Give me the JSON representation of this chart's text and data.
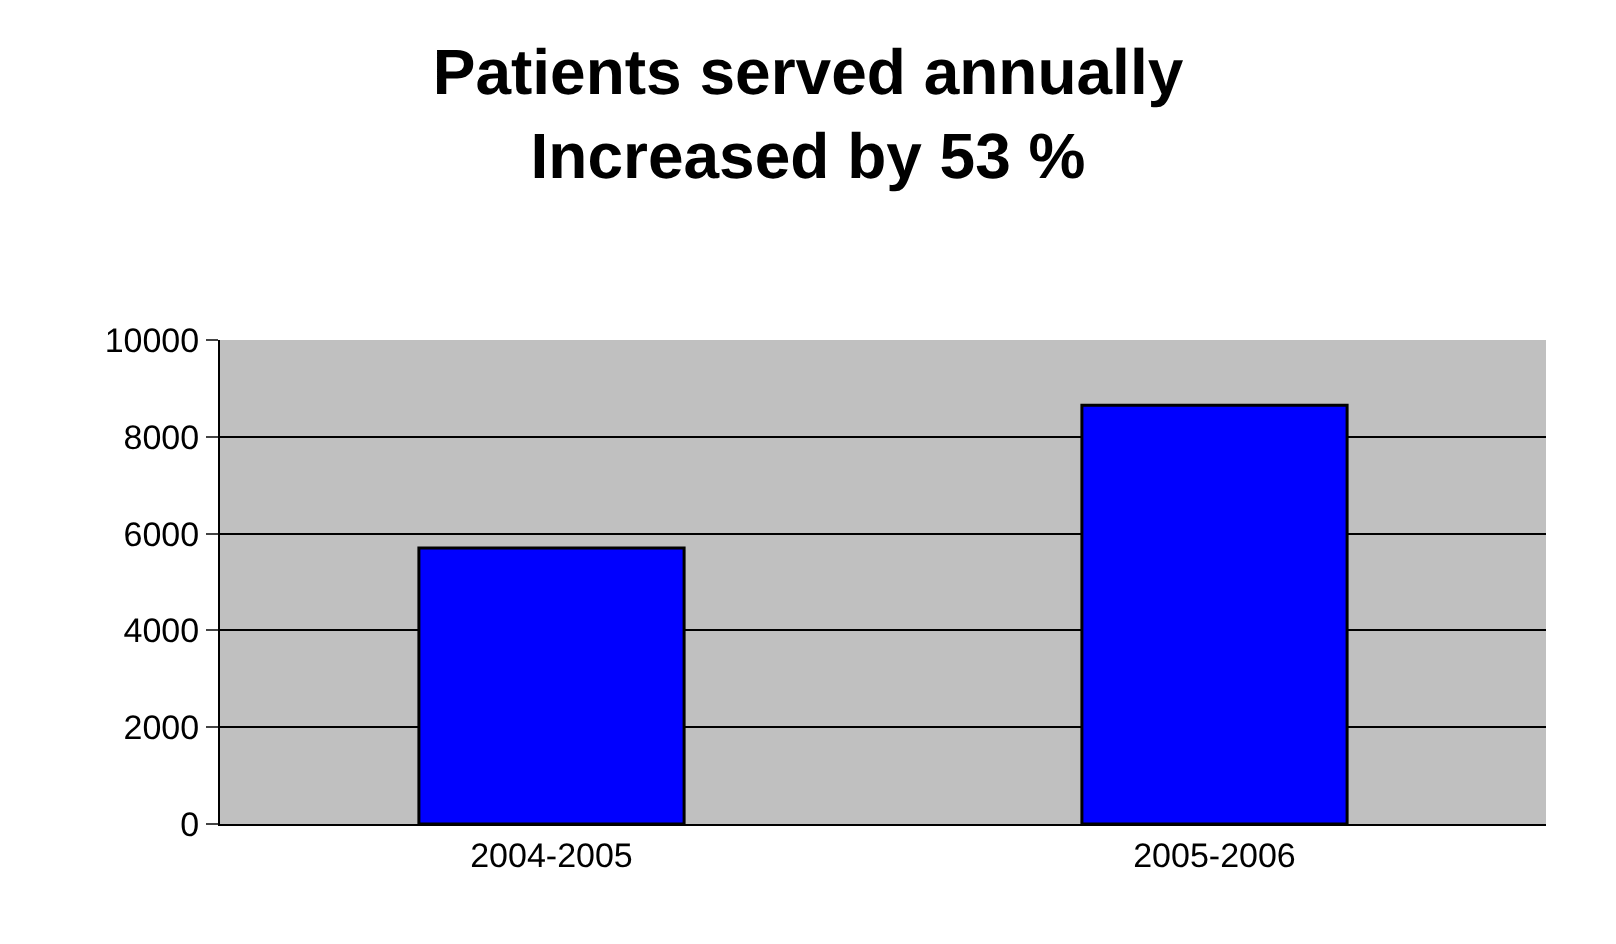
{
  "chart_data": {
    "type": "bar",
    "title": "Patients served annually\nIncreased by 53 %",
    "categories": [
      "2004-2005",
      "2005-2006"
    ],
    "series": [
      {
        "color": "#0000ff",
        "values": [
          5700,
          8650
        ]
      }
    ],
    "ylim": [
      0,
      10000
    ],
    "yticks": [
      0,
      2000,
      4000,
      6000,
      8000,
      10000
    ],
    "grid": "y",
    "legend": false
  }
}
